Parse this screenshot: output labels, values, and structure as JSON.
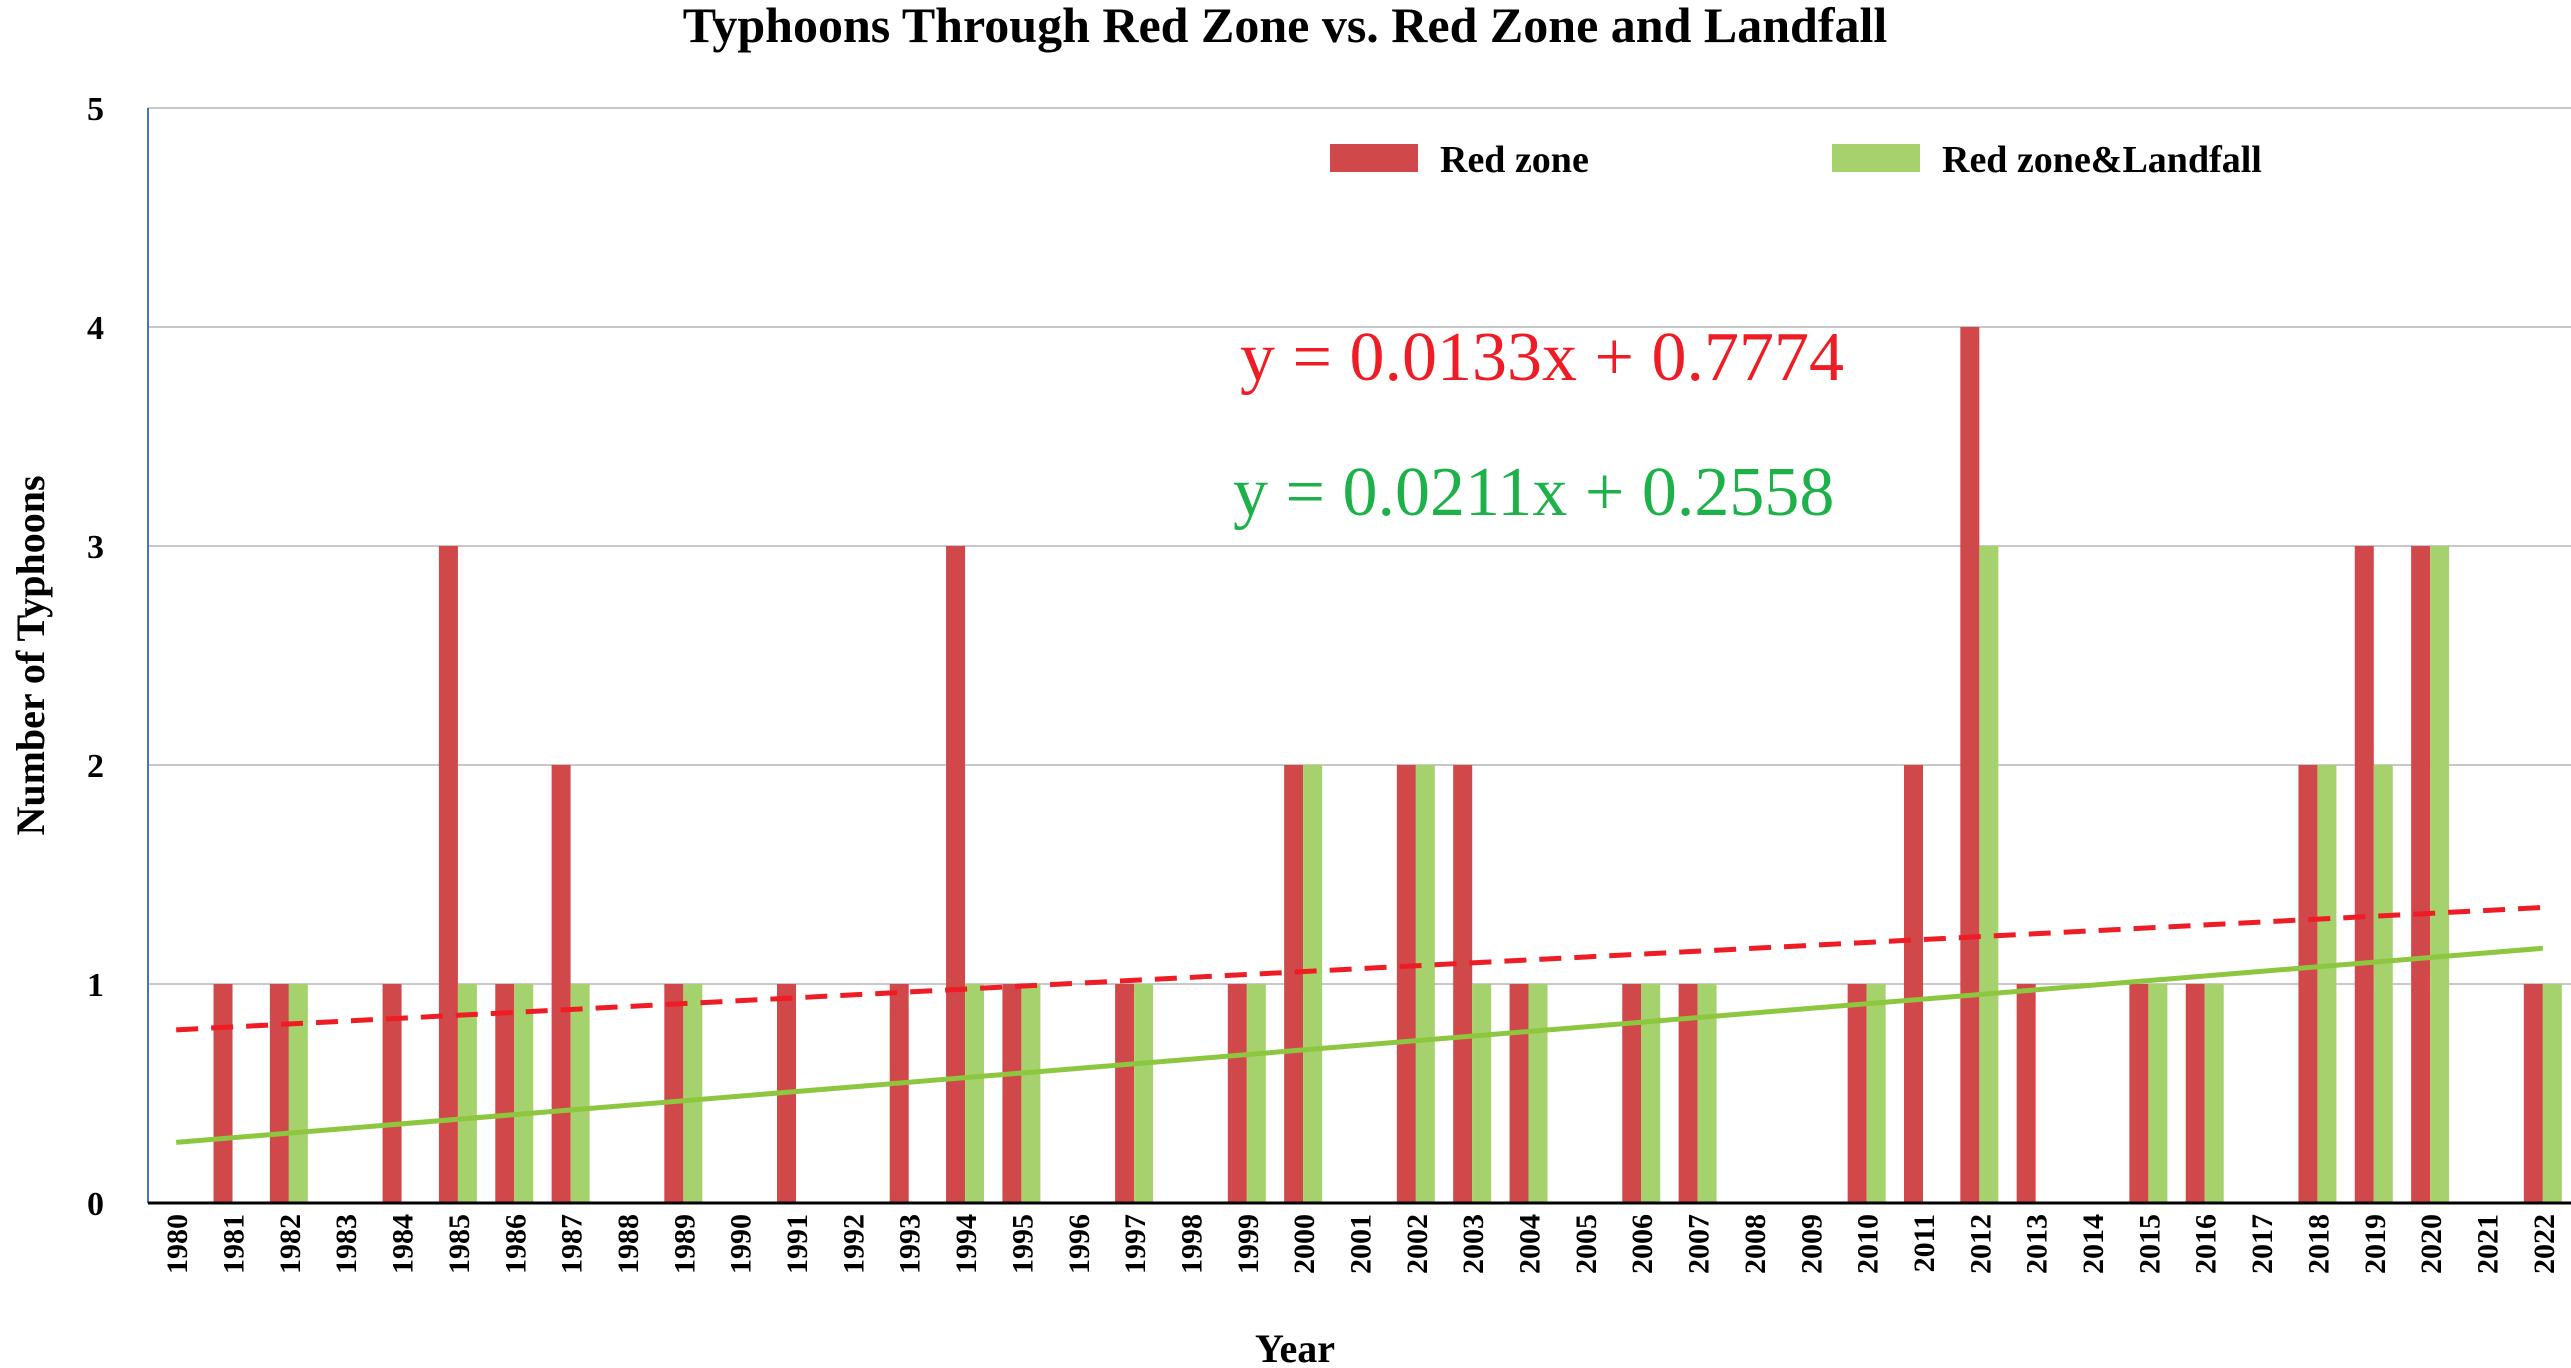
{
  "chart_data": {
    "type": "bar",
    "title": "Typhoons Through Red Zone vs. Red Zone and Landfall",
    "xlabel": "Year",
    "ylabel": "Number of Typhoons",
    "ylim": [
      0,
      5
    ],
    "yticks": [
      "0",
      "1",
      "2",
      "3",
      "4",
      "5"
    ],
    "grid": "horizontal",
    "legend_position": "top-right",
    "categories": [
      "1980",
      "1981",
      "1982",
      "1983",
      "1984",
      "1985",
      "1986",
      "1987",
      "1988",
      "1989",
      "1990",
      "1991",
      "1992",
      "1993",
      "1994",
      "1995",
      "1996",
      "1997",
      "1998",
      "1999",
      "2000",
      "2001",
      "2002",
      "2003",
      "2004",
      "2005",
      "2006",
      "2007",
      "2008",
      "2009",
      "2010",
      "2011",
      "2012",
      "2013",
      "2014",
      "2015",
      "2016",
      "2017",
      "2018",
      "2019",
      "2020",
      "2021",
      "2022"
    ],
    "series": [
      {
        "name": "Red zone",
        "color": "#d0484a",
        "values": [
          0,
          1,
          1,
          0,
          1,
          3,
          1,
          2,
          0,
          1,
          0,
          1,
          0,
          1,
          3,
          1,
          0,
          1,
          0,
          1,
          2,
          0,
          2,
          2,
          1,
          0,
          1,
          1,
          0,
          0,
          1,
          2,
          4,
          1,
          0,
          1,
          1,
          0,
          2,
          3,
          3,
          0,
          1
        ]
      },
      {
        "name": "Red zone&Landfall",
        "color": "#a6d26e",
        "values": [
          0,
          0,
          1,
          0,
          0,
          1,
          1,
          1,
          0,
          1,
          0,
          0,
          0,
          0,
          1,
          1,
          0,
          1,
          0,
          1,
          2,
          0,
          2,
          1,
          1,
          0,
          1,
          1,
          0,
          0,
          1,
          0,
          3,
          0,
          0,
          1,
          1,
          0,
          2,
          2,
          3,
          0,
          1
        ]
      }
    ],
    "trendlines": [
      {
        "series": "Red zone",
        "equation": "y = 0.0133x + 0.7774",
        "slope": 0.0133,
        "intercept": 0.7774,
        "style": "dashed",
        "color": "#ee1c24"
      },
      {
        "series": "Red zone&Landfall",
        "equation": "y = 0.0211x + 0.2558",
        "slope": 0.0211,
        "intercept": 0.2558,
        "style": "solid",
        "color": "#1eb14a",
        "line_color": "#8dc63f"
      }
    ]
  }
}
